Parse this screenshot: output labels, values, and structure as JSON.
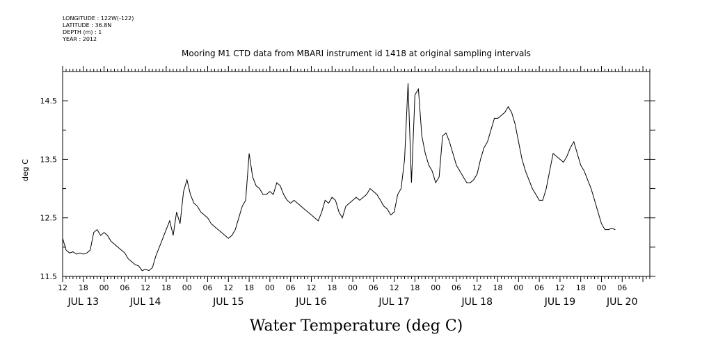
{
  "header": {
    "longitude": "LONGITUDE : 122W(-122)",
    "latitude": "LATITUDE : 36.8N",
    "depth": "DEPTH (m) : 1",
    "year": "YEAR : 2012"
  },
  "chart_data": {
    "type": "line",
    "title": "Mooring M1 CTD data from MBARI instrument id 1418 at original sampling intervals",
    "xlabel": "Water Temperature (deg C)",
    "ylabel": "deg C",
    "ylim": [
      11.5,
      15.0
    ],
    "yticks": [
      11.5,
      12.5,
      13.5,
      14.5
    ],
    "yticks_minor": [
      12.0,
      13.0,
      14.0
    ],
    "x_units": "hours since 2012-07-13 12:00",
    "xlim": [
      0,
      170
    ],
    "hour_ticks": [
      "12",
      "18",
      "00",
      "06",
      "12",
      "18",
      "00",
      "06",
      "12",
      "18",
      "00",
      "06",
      "12",
      "18",
      "00",
      "06",
      "12",
      "18",
      "00",
      "06",
      "12",
      "18",
      "00",
      "06",
      "12",
      "18",
      "00",
      "06"
    ],
    "day_labels": [
      {
        "label": "JUL 13",
        "hour": 6
      },
      {
        "label": "JUL 14",
        "hour": 24
      },
      {
        "label": "JUL 15",
        "hour": 48
      },
      {
        "label": "JUL 16",
        "hour": 72
      },
      {
        "label": "JUL 17",
        "hour": 96
      },
      {
        "label": "JUL 18",
        "hour": 120
      },
      {
        "label": "JUL 19",
        "hour": 144
      },
      {
        "label": "JUL 20",
        "hour": 162
      }
    ],
    "series": [
      {
        "points": [
          [
            0,
            12.15
          ],
          [
            1,
            11.95
          ],
          [
            2,
            11.9
          ],
          [
            3,
            11.92
          ],
          [
            4,
            11.88
          ],
          [
            5,
            11.9
          ],
          [
            6,
            11.88
          ],
          [
            7,
            11.9
          ],
          [
            8,
            11.95
          ],
          [
            9,
            12.25
          ],
          [
            10,
            12.3
          ],
          [
            11,
            12.2
          ],
          [
            12,
            12.25
          ],
          [
            13,
            12.2
          ],
          [
            14,
            12.1
          ],
          [
            15,
            12.05
          ],
          [
            16,
            12.0
          ],
          [
            17,
            11.95
          ],
          [
            18,
            11.9
          ],
          [
            19,
            11.8
          ],
          [
            20,
            11.75
          ],
          [
            21,
            11.7
          ],
          [
            22,
            11.68
          ],
          [
            23,
            11.6
          ],
          [
            24,
            11.62
          ],
          [
            25,
            11.6
          ],
          [
            26,
            11.65
          ],
          [
            27,
            11.85
          ],
          [
            28,
            12.0
          ],
          [
            29,
            12.15
          ],
          [
            30,
            12.3
          ],
          [
            31,
            12.45
          ],
          [
            32,
            12.2
          ],
          [
            33,
            12.6
          ],
          [
            34,
            12.4
          ],
          [
            35,
            12.95
          ],
          [
            36,
            13.15
          ],
          [
            37,
            12.9
          ],
          [
            38,
            12.75
          ],
          [
            39,
            12.7
          ],
          [
            40,
            12.6
          ],
          [
            41,
            12.55
          ],
          [
            42,
            12.5
          ],
          [
            43,
            12.4
          ],
          [
            44,
            12.35
          ],
          [
            45,
            12.3
          ],
          [
            46,
            12.25
          ],
          [
            47,
            12.2
          ],
          [
            48,
            12.15
          ],
          [
            49,
            12.2
          ],
          [
            50,
            12.3
          ],
          [
            51,
            12.5
          ],
          [
            52,
            12.7
          ],
          [
            53,
            12.8
          ],
          [
            54,
            13.6
          ],
          [
            55,
            13.2
          ],
          [
            56,
            13.05
          ],
          [
            57,
            13.0
          ],
          [
            58,
            12.9
          ],
          [
            59,
            12.9
          ],
          [
            60,
            12.95
          ],
          [
            61,
            12.9
          ],
          [
            62,
            13.1
          ],
          [
            63,
            13.05
          ],
          [
            64,
            12.9
          ],
          [
            65,
            12.8
          ],
          [
            66,
            12.75
          ],
          [
            67,
            12.8
          ],
          [
            68,
            12.75
          ],
          [
            69,
            12.7
          ],
          [
            70,
            12.65
          ],
          [
            71,
            12.6
          ],
          [
            72,
            12.55
          ],
          [
            73,
            12.5
          ],
          [
            74,
            12.45
          ],
          [
            75,
            12.6
          ],
          [
            76,
            12.8
          ],
          [
            77,
            12.75
          ],
          [
            78,
            12.85
          ],
          [
            79,
            12.8
          ],
          [
            80,
            12.6
          ],
          [
            81,
            12.5
          ],
          [
            82,
            12.7
          ],
          [
            83,
            12.75
          ],
          [
            84,
            12.8
          ],
          [
            85,
            12.85
          ],
          [
            86,
            12.8
          ],
          [
            87,
            12.85
          ],
          [
            88,
            12.9
          ],
          [
            89,
            13.0
          ],
          [
            90,
            12.95
          ],
          [
            91,
            12.9
          ],
          [
            92,
            12.8
          ],
          [
            93,
            12.7
          ],
          [
            94,
            12.65
          ],
          [
            95,
            12.55
          ],
          [
            96,
            12.6
          ],
          [
            97,
            12.9
          ],
          [
            98,
            13.0
          ],
          [
            99,
            13.5
          ],
          [
            100,
            14.8
          ],
          [
            101,
            13.1
          ],
          [
            102,
            14.6
          ],
          [
            103,
            14.7
          ],
          [
            104,
            13.9
          ],
          [
            105,
            13.6
          ],
          [
            106,
            13.4
          ],
          [
            107,
            13.3
          ],
          [
            108,
            13.1
          ],
          [
            109,
            13.2
          ],
          [
            110,
            13.9
          ],
          [
            111,
            13.95
          ],
          [
            112,
            13.8
          ],
          [
            113,
            13.6
          ],
          [
            114,
            13.4
          ],
          [
            115,
            13.3
          ],
          [
            116,
            13.2
          ],
          [
            117,
            13.1
          ],
          [
            118,
            13.1
          ],
          [
            119,
            13.15
          ],
          [
            120,
            13.25
          ],
          [
            121,
            13.5
          ],
          [
            122,
            13.7
          ],
          [
            123,
            13.8
          ],
          [
            124,
            14.0
          ],
          [
            125,
            14.2
          ],
          [
            126,
            14.2
          ],
          [
            127,
            14.25
          ],
          [
            128,
            14.3
          ],
          [
            129,
            14.4
          ],
          [
            130,
            14.3
          ],
          [
            131,
            14.1
          ],
          [
            132,
            13.8
          ],
          [
            133,
            13.5
          ],
          [
            134,
            13.3
          ],
          [
            135,
            13.15
          ],
          [
            136,
            13.0
          ],
          [
            137,
            12.9
          ],
          [
            138,
            12.8
          ],
          [
            139,
            12.8
          ],
          [
            140,
            13.0
          ],
          [
            141,
            13.3
          ],
          [
            142,
            13.6
          ],
          [
            143,
            13.55
          ],
          [
            144,
            13.5
          ],
          [
            145,
            13.45
          ],
          [
            146,
            13.55
          ],
          [
            147,
            13.7
          ],
          [
            148,
            13.8
          ],
          [
            149,
            13.6
          ],
          [
            150,
            13.4
          ],
          [
            151,
            13.3
          ],
          [
            152,
            13.15
          ],
          [
            153,
            13.0
          ],
          [
            154,
            12.8
          ],
          [
            155,
            12.6
          ],
          [
            156,
            12.4
          ],
          [
            157,
            12.3
          ],
          [
            158,
            12.3
          ],
          [
            159,
            12.32
          ],
          [
            160,
            12.3
          ]
        ]
      }
    ],
    "grid": false
  }
}
